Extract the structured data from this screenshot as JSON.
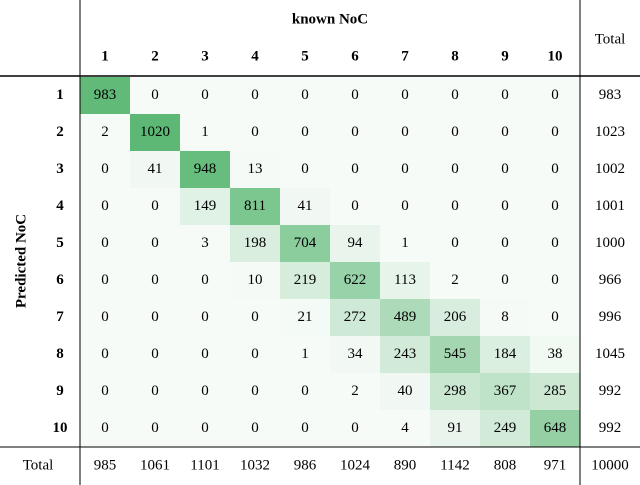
{
  "header": {
    "title": "known NoC",
    "total": "Total"
  },
  "row_axis": "Predicted NoC",
  "columns": [
    "1",
    "2",
    "3",
    "4",
    "5",
    "6",
    "7",
    "8",
    "9",
    "10"
  ],
  "rows": [
    {
      "label": "1",
      "cells": [
        983,
        0,
        0,
        0,
        0,
        0,
        0,
        0,
        0,
        0
      ],
      "total": 983
    },
    {
      "label": "2",
      "cells": [
        2,
        1020,
        1,
        0,
        0,
        0,
        0,
        0,
        0,
        0
      ],
      "total": 1023
    },
    {
      "label": "3",
      "cells": [
        0,
        41,
        948,
        13,
        0,
        0,
        0,
        0,
        0,
        0
      ],
      "total": 1002
    },
    {
      "label": "4",
      "cells": [
        0,
        0,
        149,
        811,
        41,
        0,
        0,
        0,
        0,
        0
      ],
      "total": 1001
    },
    {
      "label": "5",
      "cells": [
        0,
        0,
        3,
        198,
        704,
        94,
        1,
        0,
        0,
        0
      ],
      "total": 1000
    },
    {
      "label": "6",
      "cells": [
        0,
        0,
        0,
        10,
        219,
        622,
        113,
        2,
        0,
        0
      ],
      "total": 966
    },
    {
      "label": "7",
      "cells": [
        0,
        0,
        0,
        0,
        21,
        272,
        489,
        206,
        8,
        0
      ],
      "total": 996
    },
    {
      "label": "8",
      "cells": [
        0,
        0,
        0,
        0,
        1,
        34,
        243,
        545,
        184,
        38
      ],
      "total": 1045
    },
    {
      "label": "9",
      "cells": [
        0,
        0,
        0,
        0,
        0,
        2,
        40,
        298,
        367,
        285
      ],
      "total": 992
    },
    {
      "label": "10",
      "cells": [
        0,
        0,
        0,
        0,
        0,
        0,
        4,
        91,
        249,
        648
      ],
      "total": 992
    }
  ],
  "totals": {
    "label": "Total",
    "cells": [
      985,
      1061,
      1101,
      1032,
      986,
      1024,
      890,
      1142,
      808,
      971
    ],
    "total": 10000
  }
}
